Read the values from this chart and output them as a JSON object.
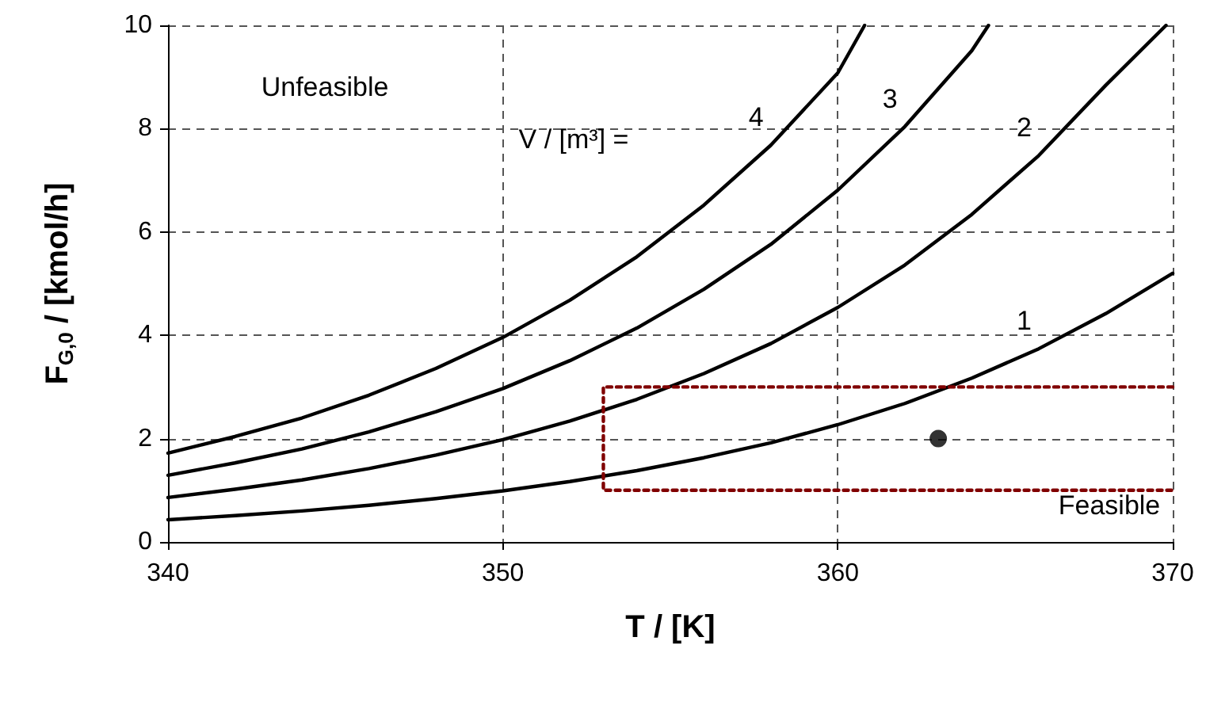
{
  "chart_data": {
    "type": "line",
    "xlabel": "T / [K]",
    "ylabel": "F$_{G,0}$ / [kmol/h]",
    "xlim": [
      340,
      370
    ],
    "xticks": [
      340,
      350,
      360,
      370
    ],
    "ylim": [
      0,
      10
    ],
    "yticks": [
      0,
      2,
      4,
      6,
      8,
      10
    ],
    "grid": true,
    "marker": "none",
    "line_style": "solid",
    "series": [
      {
        "name": "1",
        "color": "#000000",
        "x": [
          340,
          342,
          344,
          346,
          348,
          350,
          352,
          354,
          356,
          358,
          360,
          362,
          364,
          366,
          368,
          370
        ],
        "values": [
          0.43,
          0.51,
          0.6,
          0.71,
          0.84,
          0.99,
          1.17,
          1.38,
          1.63,
          1.92,
          2.27,
          2.68,
          3.17,
          3.74,
          4.42,
          5.2
        ]
      },
      {
        "name": "2",
        "color": "#000000",
        "x": [
          340,
          342,
          344,
          346,
          348,
          350,
          352,
          354,
          356,
          358,
          360,
          362,
          364,
          366,
          368,
          369.8
        ],
        "values": [
          0.86,
          1.02,
          1.2,
          1.42,
          1.68,
          1.98,
          2.34,
          2.76,
          3.26,
          3.84,
          4.54,
          5.36,
          6.34,
          7.48,
          8.84,
          10
        ]
      },
      {
        "name": "3",
        "color": "#000000",
        "x": [
          340,
          342,
          344,
          346,
          348,
          350,
          352,
          354,
          356,
          358,
          360,
          362,
          364,
          364.5
        ],
        "values": [
          1.29,
          1.53,
          1.8,
          2.13,
          2.52,
          2.97,
          3.51,
          4.14,
          4.89,
          5.76,
          6.81,
          8.04,
          9.51,
          10
        ]
      },
      {
        "name": "4",
        "color": "#000000",
        "x": [
          340,
          342,
          344,
          346,
          348,
          350,
          352,
          354,
          356,
          358,
          360,
          360.8
        ],
        "values": [
          1.72,
          2.04,
          2.4,
          2.84,
          3.36,
          3.96,
          4.68,
          5.52,
          6.52,
          7.68,
          9.08,
          10
        ]
      },
      {
        "color": "#800000",
        "line_style": "dotted",
        "x": [
          370,
          353,
          353,
          370
        ],
        "values": [
          3,
          3,
          1,
          1
        ]
      },
      {
        "type": "scatter",
        "marker": "circle",
        "color": "#000000",
        "x": [
          363
        ],
        "values": [
          2
        ]
      }
    ],
    "annotations": [
      "Unfeasible",
      "V / [m³] =",
      "Feasible"
    ]
  }
}
